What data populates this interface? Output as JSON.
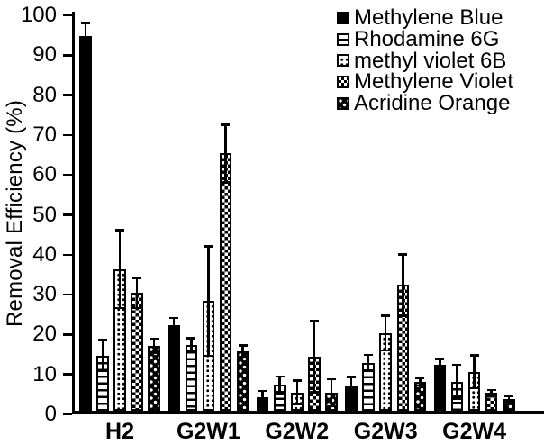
{
  "chart_data": {
    "type": "bar",
    "title": "",
    "ylabel": "Removal Efficiency (%)",
    "xlabel": "",
    "ylim": [
      0,
      100
    ],
    "ytick_interval": 10,
    "yticks": [
      0,
      10,
      20,
      30,
      40,
      50,
      60,
      70,
      80,
      90,
      100
    ],
    "grid": false,
    "legend_position": "top-right",
    "error_bars": "plus-minus with caps",
    "categories": [
      "H2",
      "G2W1",
      "G2W2",
      "G2W3",
      "G2W4"
    ],
    "series": [
      {
        "name": "Methylene Blue",
        "pattern": "solid-black",
        "values": [
          94,
          21.5,
          3.5,
          6.0,
          11.5
        ],
        "errors": [
          3.5,
          2,
          1.8,
          2.7,
          1.8
        ]
      },
      {
        "name": "Rhodamine 6G",
        "pattern": "horizontal-lines",
        "values": [
          13.8,
          16.5,
          6.5,
          12.0,
          7.3
        ],
        "errors": [
          4.2,
          2,
          2.4,
          2.3,
          4.5
        ]
      },
      {
        "name": "methyl violet 6B",
        "pattern": "black-dots-on-white",
        "values": [
          35.5,
          27.5,
          4.6,
          19.5,
          9.8
        ],
        "errors": [
          10,
          14,
          3.2,
          4.6,
          4.4
        ]
      },
      {
        "name": "Methylene Violet",
        "pattern": "checkerboard",
        "values": [
          29.5,
          64.5,
          13.6,
          31.5,
          4.5
        ],
        "errors": [
          4,
          7.5,
          9.2,
          8,
          1
        ]
      },
      {
        "name": "Acridine Orange",
        "pattern": "white-dots-on-black",
        "values": [
          16.3,
          15.0,
          4.5,
          7.2,
          2.9
        ],
        "errors": [
          2,
          1.7,
          3.7,
          1.2,
          1
        ]
      }
    ],
    "colors": {
      "foreground": "#000000",
      "background": "#ffffff"
    }
  }
}
